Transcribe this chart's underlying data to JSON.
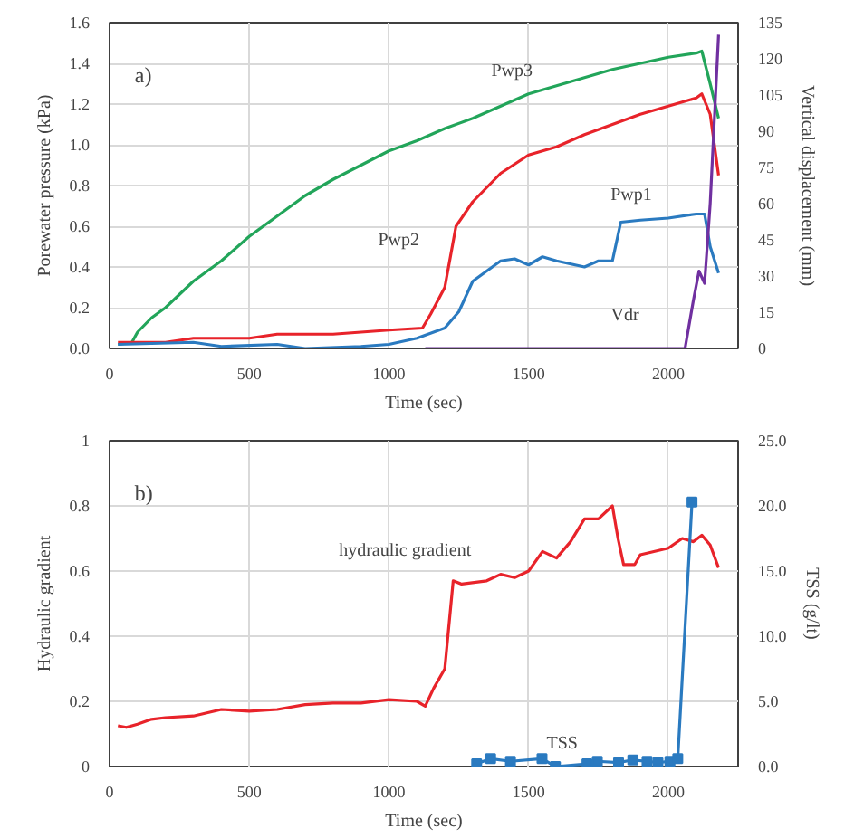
{
  "chart_data": [
    {
      "type": "line",
      "xlabel": "Time (sec)",
      "ylabel": "Porewater pressure (kPa)",
      "y2label": "Vertical displacement (mm)",
      "annotations": [
        "a)"
      ],
      "xlim": [
        0,
        2250
      ],
      "xticks": [
        0,
        500,
        1000,
        1500,
        2000
      ],
      "ylim": [
        0,
        1.6
      ],
      "yticks": [
        {
          "value": 0,
          "label": "0.0"
        },
        {
          "value": 0.2,
          "label": "0.2"
        },
        {
          "value": 0.4,
          "label": "0.4"
        },
        {
          "value": 0.6,
          "label": "0.6"
        },
        {
          "value": 0.8,
          "label": "0.8"
        },
        {
          "value": 1.0,
          "label": "1.0"
        },
        {
          "value": 1.2,
          "label": "1.2"
        },
        {
          "value": 1.4,
          "label": "1.4"
        },
        {
          "value": 1.6,
          "label": "1.6"
        }
      ],
      "y2lim": [
        0,
        135
      ],
      "y2ticks": [
        0,
        15,
        30,
        45,
        60,
        75,
        90,
        105,
        120,
        135
      ],
      "grid": true,
      "line_style": "solid",
      "marker": "none",
      "series": [
        {
          "name": "Pwp3",
          "color": "#22a55a",
          "x": [
            30,
            80,
            100,
            150,
            200,
            300,
            400,
            500,
            600,
            700,
            800,
            900,
            1000,
            1100,
            1200,
            1300,
            1400,
            1500,
            1600,
            1700,
            1800,
            1900,
            2000,
            2100,
            2120,
            2150,
            2180
          ],
          "values": [
            0.02,
            0.03,
            0.08,
            0.15,
            0.2,
            0.33,
            0.43,
            0.55,
            0.65,
            0.75,
            0.83,
            0.9,
            0.97,
            1.02,
            1.08,
            1.13,
            1.19,
            1.25,
            1.29,
            1.33,
            1.37,
            1.4,
            1.43,
            1.45,
            1.46,
            1.3,
            1.13
          ]
        },
        {
          "name": "Pwp2",
          "color": "#e8232a",
          "x": [
            30,
            200,
            300,
            500,
            600,
            800,
            1000,
            1120,
            1150,
            1200,
            1220,
            1240,
            1300,
            1400,
            1500,
            1600,
            1700,
            1800,
            1900,
            2000,
            2100,
            2120,
            2150,
            2180
          ],
          "values": [
            0.03,
            0.03,
            0.05,
            0.05,
            0.07,
            0.07,
            0.09,
            0.1,
            0.17,
            0.3,
            0.45,
            0.6,
            0.72,
            0.86,
            0.95,
            0.99,
            1.05,
            1.1,
            1.15,
            1.19,
            1.23,
            1.25,
            1.15,
            0.85
          ]
        },
        {
          "name": "Pwp1",
          "color": "#2a7ac0",
          "x": [
            30,
            300,
            400,
            600,
            700,
            900,
            1000,
            1100,
            1200,
            1250,
            1300,
            1400,
            1450,
            1500,
            1550,
            1600,
            1700,
            1750,
            1800,
            1830,
            1900,
            2000,
            2100,
            2130,
            2150,
            2180
          ],
          "values": [
            0.02,
            0.03,
            0.01,
            0.02,
            0.0,
            0.01,
            0.02,
            0.05,
            0.1,
            0.18,
            0.33,
            0.43,
            0.44,
            0.41,
            0.45,
            0.43,
            0.4,
            0.43,
            0.43,
            0.62,
            0.63,
            0.64,
            0.66,
            0.66,
            0.5,
            0.37
          ]
        },
        {
          "name": "Vdr",
          "color": "#7030a0",
          "axis": "y2",
          "x": [
            1130,
            1900,
            2060,
            2090,
            2110,
            2130,
            2150,
            2180
          ],
          "values": [
            0,
            0,
            0,
            20,
            32,
            27,
            60,
            130
          ]
        }
      ]
    },
    {
      "type": "line",
      "xlabel": "Time (sec)",
      "ylabel": "Hydraulic gradient",
      "y2label": "TSS (g/lt)",
      "annotations": [
        "b)"
      ],
      "xlim": [
        0,
        2250
      ],
      "xticks": [
        0,
        500,
        1000,
        1500,
        2000
      ],
      "ylim": [
        0,
        1
      ],
      "yticks": [
        0,
        0.2,
        0.4,
        0.6,
        0.8,
        1
      ],
      "y2lim": [
        0,
        25
      ],
      "y2ticks": [
        {
          "value": 0,
          "label": "0.0"
        },
        {
          "value": 5,
          "label": "5.0"
        },
        {
          "value": 10,
          "label": "10.0"
        },
        {
          "value": 15,
          "label": "15.0"
        },
        {
          "value": 20,
          "label": "20.0"
        },
        {
          "value": 25,
          "label": "25.0"
        }
      ],
      "grid": true,
      "line_style": "solid",
      "series": [
        {
          "name": "hydraulic gradient",
          "color": "#e8232a",
          "marker": "none",
          "x": [
            30,
            60,
            100,
            150,
            200,
            300,
            400,
            500,
            600,
            700,
            800,
            900,
            1000,
            1100,
            1130,
            1160,
            1200,
            1230,
            1260,
            1350,
            1400,
            1450,
            1500,
            1550,
            1600,
            1650,
            1700,
            1750,
            1800,
            1820,
            1840,
            1880,
            1900,
            2000,
            2050,
            2090,
            2120,
            2150,
            2180
          ],
          "values": [
            0.125,
            0.12,
            0.13,
            0.145,
            0.15,
            0.155,
            0.175,
            0.17,
            0.175,
            0.19,
            0.195,
            0.195,
            0.205,
            0.2,
            0.185,
            0.24,
            0.3,
            0.57,
            0.56,
            0.57,
            0.59,
            0.58,
            0.6,
            0.66,
            0.64,
            0.69,
            0.76,
            0.76,
            0.8,
            0.7,
            0.62,
            0.62,
            0.65,
            0.67,
            0.7,
            0.69,
            0.71,
            0.68,
            0.61
          ]
        },
        {
          "name": "TSS",
          "color": "#2a7ac0",
          "marker": "square",
          "axis": "y2",
          "x": [
            1314,
            1364,
            1435,
            1548,
            1596,
            1709,
            1746,
            1822,
            1873,
            1924,
            1963,
            2006,
            2034,
            2085
          ],
          "values": [
            0.2,
            0.6,
            0.4,
            0.6,
            0,
            0.2,
            0.4,
            0.3,
            0.5,
            0.4,
            0.3,
            0.4,
            0.6,
            20.3
          ]
        }
      ]
    }
  ]
}
